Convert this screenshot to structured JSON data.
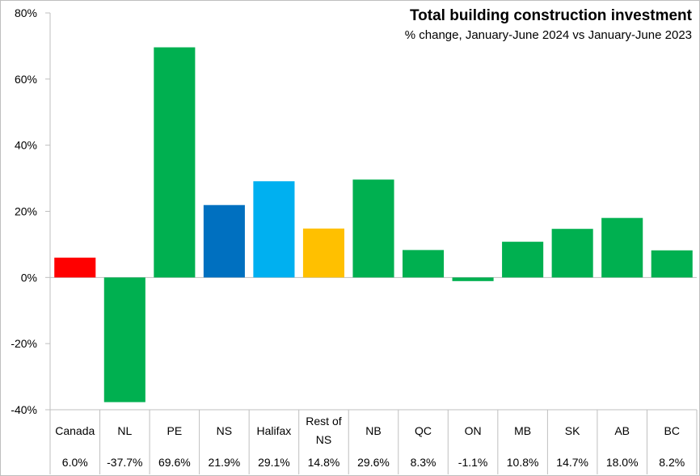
{
  "chart_data": {
    "type": "bar",
    "title": "Total building construction investment",
    "subtitle": "% change, January-June 2024 vs January-June 2023",
    "categories": [
      "Canada",
      "NL",
      "PE",
      "NS",
      "Halifax",
      "Rest of NS",
      "NB",
      "QC",
      "ON",
      "MB",
      "SK",
      "AB",
      "BC"
    ],
    "values": [
      6.0,
      -37.7,
      69.6,
      21.9,
      29.1,
      14.8,
      29.6,
      8.3,
      -1.1,
      10.8,
      14.7,
      18.0,
      8.2
    ],
    "value_labels": [
      "6.0%",
      "-37.7%",
      "69.6%",
      "21.9%",
      "29.1%",
      "14.8%",
      "29.6%",
      "8.3%",
      "-1.1%",
      "10.8%",
      "14.7%",
      "18.0%",
      "8.2%"
    ],
    "bar_colors": [
      "#ff0000",
      "#00b050",
      "#00b050",
      "#0070c0",
      "#00b0f0",
      "#ffc000",
      "#00b050",
      "#00b050",
      "#00b050",
      "#00b050",
      "#00b050",
      "#00b050",
      "#00b050"
    ],
    "ylim": [
      -40,
      80
    ],
    "yticks": [
      -40,
      -20,
      0,
      20,
      40,
      60,
      80
    ],
    "ytick_labels": [
      "-40%",
      "-20%",
      "0%",
      "20%",
      "40%",
      "60%",
      "80%"
    ],
    "grid": false,
    "legend": "none"
  }
}
